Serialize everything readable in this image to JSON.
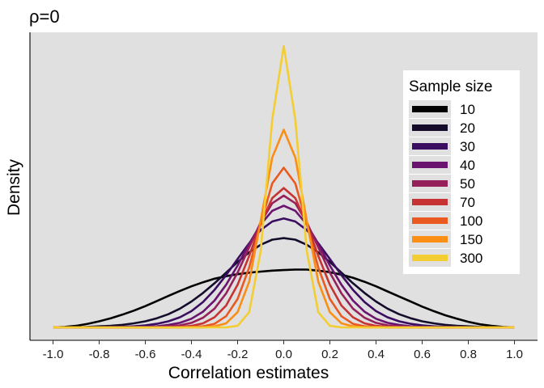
{
  "chart_data": {
    "type": "line",
    "title": "ρ=0",
    "xlabel": "Correlation estimates",
    "ylabel": "Density",
    "xlim": [
      -1.1,
      1.1
    ],
    "ylim": [
      0,
      7.0
    ],
    "x_ticks": [
      "-1.0",
      "-0.8",
      "-0.6",
      "-0.4",
      "-0.2",
      "0.0",
      "0.2",
      "0.4",
      "0.6",
      "0.8",
      "1.0"
    ],
    "grid": false,
    "background": "#e0e0e0",
    "legend": {
      "title": "Sample size",
      "position": "right",
      "labels": [
        "10",
        "20",
        "30",
        "40",
        "50",
        "70",
        "100",
        "150",
        "300"
      ]
    },
    "x": [
      -1.0,
      -0.95,
      -0.9,
      -0.85,
      -0.8,
      -0.75,
      -0.7,
      -0.65,
      -0.6,
      -0.55,
      -0.5,
      -0.45,
      -0.4,
      -0.35,
      -0.3,
      -0.25,
      -0.2,
      -0.15,
      -0.1,
      -0.05,
      0.0,
      0.05,
      0.1,
      0.15,
      0.2,
      0.25,
      0.3,
      0.35,
      0.4,
      0.45,
      0.5,
      0.55,
      0.6,
      0.65,
      0.7,
      0.75,
      0.8,
      0.85,
      0.9,
      0.95,
      1.0
    ],
    "series": [
      {
        "name": "10",
        "color": "#000004",
        "values": [
          0.0,
          0.01,
          0.03,
          0.07,
          0.12,
          0.18,
          0.25,
          0.33,
          0.42,
          0.52,
          0.62,
          0.72,
          0.81,
          0.89,
          0.96,
          1.01,
          1.05,
          1.08,
          1.1,
          1.12,
          1.13,
          1.14,
          1.14,
          1.12,
          1.09,
          1.04,
          0.98,
          0.9,
          0.81,
          0.71,
          0.61,
          0.51,
          0.41,
          0.32,
          0.24,
          0.17,
          0.11,
          0.06,
          0.03,
          0.01,
          0.0
        ]
      },
      {
        "name": "20",
        "color": "#140e36",
        "values": [
          0.0,
          0.0,
          0.0,
          0.01,
          0.02,
          0.03,
          0.05,
          0.08,
          0.12,
          0.18,
          0.26,
          0.37,
          0.51,
          0.68,
          0.87,
          1.08,
          1.29,
          1.48,
          1.63,
          1.73,
          1.76,
          1.73,
          1.63,
          1.48,
          1.29,
          1.08,
          0.87,
          0.68,
          0.51,
          0.37,
          0.26,
          0.18,
          0.12,
          0.08,
          0.05,
          0.03,
          0.02,
          0.01,
          0.0,
          0.0,
          0.0
        ]
      },
      {
        "name": "30",
        "color": "#3b0f70",
        "values": [
          0.0,
          0.0,
          0.0,
          0.0,
          0.0,
          0.01,
          0.01,
          0.02,
          0.04,
          0.07,
          0.12,
          0.2,
          0.32,
          0.5,
          0.74,
          1.03,
          1.35,
          1.66,
          1.92,
          2.09,
          2.15,
          2.09,
          1.92,
          1.66,
          1.35,
          1.03,
          0.74,
          0.5,
          0.32,
          0.2,
          0.12,
          0.07,
          0.04,
          0.02,
          0.01,
          0.01,
          0.0,
          0.0,
          0.0,
          0.0,
          0.0
        ]
      },
      {
        "name": "40",
        "color": "#641a80",
        "values": [
          0.0,
          0.0,
          0.0,
          0.0,
          0.0,
          0.0,
          0.0,
          0.01,
          0.01,
          0.02,
          0.05,
          0.09,
          0.17,
          0.31,
          0.53,
          0.84,
          1.22,
          1.65,
          2.03,
          2.3,
          2.4,
          2.3,
          2.03,
          1.65,
          1.22,
          0.84,
          0.53,
          0.31,
          0.17,
          0.09,
          0.05,
          0.02,
          0.01,
          0.01,
          0.0,
          0.0,
          0.0,
          0.0,
          0.0,
          0.0,
          0.0
        ]
      },
      {
        "name": "50",
        "color": "#8c2981",
        "values": [
          0.0,
          0.0,
          0.0,
          0.0,
          0.0,
          0.0,
          0.0,
          0.0,
          0.0,
          0.01,
          0.02,
          0.04,
          0.09,
          0.19,
          0.37,
          0.67,
          1.08,
          1.58,
          2.07,
          2.45,
          2.6,
          2.45,
          2.07,
          1.58,
          1.08,
          0.67,
          0.37,
          0.19,
          0.09,
          0.04,
          0.02,
          0.01,
          0.0,
          0.0,
          0.0,
          0.0,
          0.0,
          0.0,
          0.0,
          0.0,
          0.0
        ]
      },
      {
        "name": "70",
        "color": "#b73779",
        "values": [
          0.0,
          0.0,
          0.0,
          0.0,
          0.0,
          0.0,
          0.0,
          0.0,
          0.0,
          0.0,
          0.0,
          0.01,
          0.03,
          0.08,
          0.2,
          0.43,
          0.84,
          1.41,
          2.04,
          2.55,
          2.75,
          2.55,
          2.04,
          1.41,
          0.84,
          0.43,
          0.2,
          0.08,
          0.03,
          0.01,
          0.0,
          0.0,
          0.0,
          0.0,
          0.0,
          0.0,
          0.0,
          0.0,
          0.0,
          0.0,
          0.0
        ]
      },
      {
        "name": "100",
        "color": "#de4968",
        "values": [
          0.0,
          0.0,
          0.0,
          0.0,
          0.0,
          0.0,
          0.0,
          0.0,
          0.0,
          0.0,
          0.0,
          0.0,
          0.01,
          0.02,
          0.07,
          0.22,
          0.56,
          1.18,
          2.04,
          2.84,
          3.15,
          2.84,
          2.04,
          1.18,
          0.56,
          0.22,
          0.07,
          0.02,
          0.01,
          0.0,
          0.0,
          0.0,
          0.0,
          0.0,
          0.0,
          0.0,
          0.0,
          0.0,
          0.0,
          0.0,
          0.0
        ]
      },
      {
        "name": "150",
        "color": "#fb8761",
        "values": [
          0.0,
          0.0,
          0.0,
          0.0,
          0.0,
          0.0,
          0.0,
          0.0,
          0.0,
          0.0,
          0.0,
          0.0,
          0.0,
          0.0,
          0.02,
          0.08,
          0.3,
          0.9,
          2.1,
          3.35,
          3.9,
          3.35,
          2.1,
          0.9,
          0.3,
          0.08,
          0.02,
          0.0,
          0.0,
          0.0,
          0.0,
          0.0,
          0.0,
          0.0,
          0.0,
          0.0,
          0.0,
          0.0,
          0.0,
          0.0,
          0.0
        ]
      },
      {
        "name": "300",
        "color": "#fcfdbf",
        "values": [
          0.0,
          0.0,
          0.0,
          0.0,
          0.0,
          0.0,
          0.0,
          0.0,
          0.0,
          0.0,
          0.0,
          0.0,
          0.0,
          0.0,
          0.0,
          0.0,
          0.03,
          0.3,
          1.5,
          4.1,
          5.55,
          4.1,
          1.5,
          0.3,
          0.03,
          0.0,
          0.0,
          0.0,
          0.0,
          0.0,
          0.0,
          0.0,
          0.0,
          0.0,
          0.0,
          0.0,
          0.0,
          0.0,
          0.0,
          0.0,
          0.0
        ]
      }
    ],
    "series_display_colors": [
      "#000000",
      "#150c2c",
      "#3a0d60",
      "#6a1470",
      "#96215a",
      "#c73333",
      "#ea5a20",
      "#fb8e14",
      "#f4cd33"
    ]
  }
}
